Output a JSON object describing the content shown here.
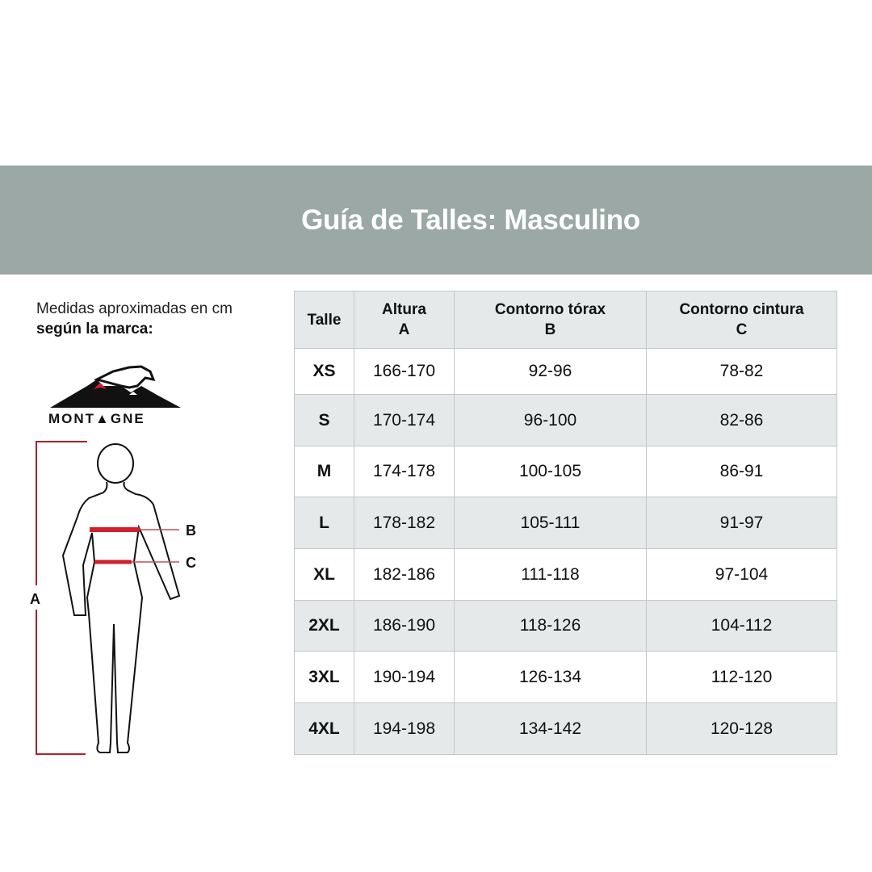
{
  "title": "Guía de Talles: Masculino",
  "intro": {
    "line1": "Medidas aproximadas en cm",
    "line2": "según la marca:"
  },
  "brand": {
    "logo_text": "MONTAGNE",
    "accent": "#d0202a"
  },
  "figure": {
    "label_a": "A",
    "label_b": "B",
    "label_c": "C",
    "line_color": "#c0202a"
  },
  "table": {
    "headers": [
      {
        "l1": "Talle",
        "l2": ""
      },
      {
        "l1": "Altura",
        "l2": "A"
      },
      {
        "l1": "Contorno tórax",
        "l2": "B"
      },
      {
        "l1": "Contorno cintura",
        "l2": "C"
      }
    ],
    "rows": [
      [
        "XS",
        "166-170",
        "92-96",
        "78-82"
      ],
      [
        "S",
        "170-174",
        "96-100",
        "82-86"
      ],
      [
        "M",
        "174-178",
        "100-105",
        "86-91"
      ],
      [
        "L",
        "178-182",
        "105-111",
        "91-97"
      ],
      [
        "XL",
        "182-186",
        "111-118",
        "97-104"
      ],
      [
        "2XL",
        "186-190",
        "118-126",
        "104-112"
      ],
      [
        "3XL",
        "190-194",
        "126-134",
        "112-120"
      ],
      [
        "4XL",
        "194-198",
        "134-142",
        "120-128"
      ]
    ]
  }
}
